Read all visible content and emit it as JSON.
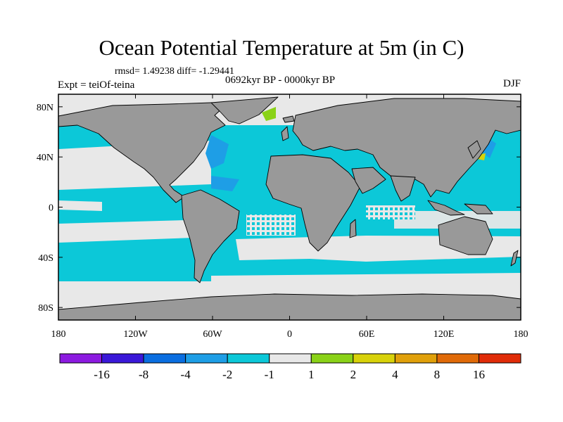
{
  "title": "Ocean Potential Temperature at 5m (in C)",
  "stats": "rmsd= 1.49238 diff= -1.29441",
  "experiment": "Expt = teiOf-teina",
  "period": "0692kyr BP - 0000kyr BP",
  "season": "DJF",
  "map": {
    "projection": "cylindrical-equidistant",
    "lon_range": [
      -180,
      180
    ],
    "lat_range": [
      -90,
      90
    ],
    "land_color": "#999999",
    "neutral_color": "#e8e8e8",
    "x_ticks": [
      {
        "value": -180,
        "label": "180"
      },
      {
        "value": -120,
        "label": "120W"
      },
      {
        "value": -60,
        "label": "60W"
      },
      {
        "value": 0,
        "label": "0"
      },
      {
        "value": 60,
        "label": "60E"
      },
      {
        "value": 120,
        "label": "120E"
      },
      {
        "value": 180,
        "label": "180"
      }
    ],
    "y_ticks": [
      {
        "value": 80,
        "label": "80N"
      },
      {
        "value": 40,
        "label": "40N"
      },
      {
        "value": 0,
        "label": "0"
      },
      {
        "value": -40,
        "label": "40S"
      },
      {
        "value": -80,
        "label": "80S"
      }
    ]
  },
  "colorbar": {
    "colors": [
      "#8c1ae0",
      "#3a18d8",
      "#0a6ee0",
      "#1e9ee6",
      "#0cc8d8",
      "#e8e8e8",
      "#8ad218",
      "#d8d20a",
      "#e0a00a",
      "#e06a08",
      "#e02c08"
    ],
    "labels": [
      "-16",
      "-8",
      "-4",
      "-2",
      "-1",
      "1",
      "2",
      "4",
      "8",
      "16"
    ]
  }
}
